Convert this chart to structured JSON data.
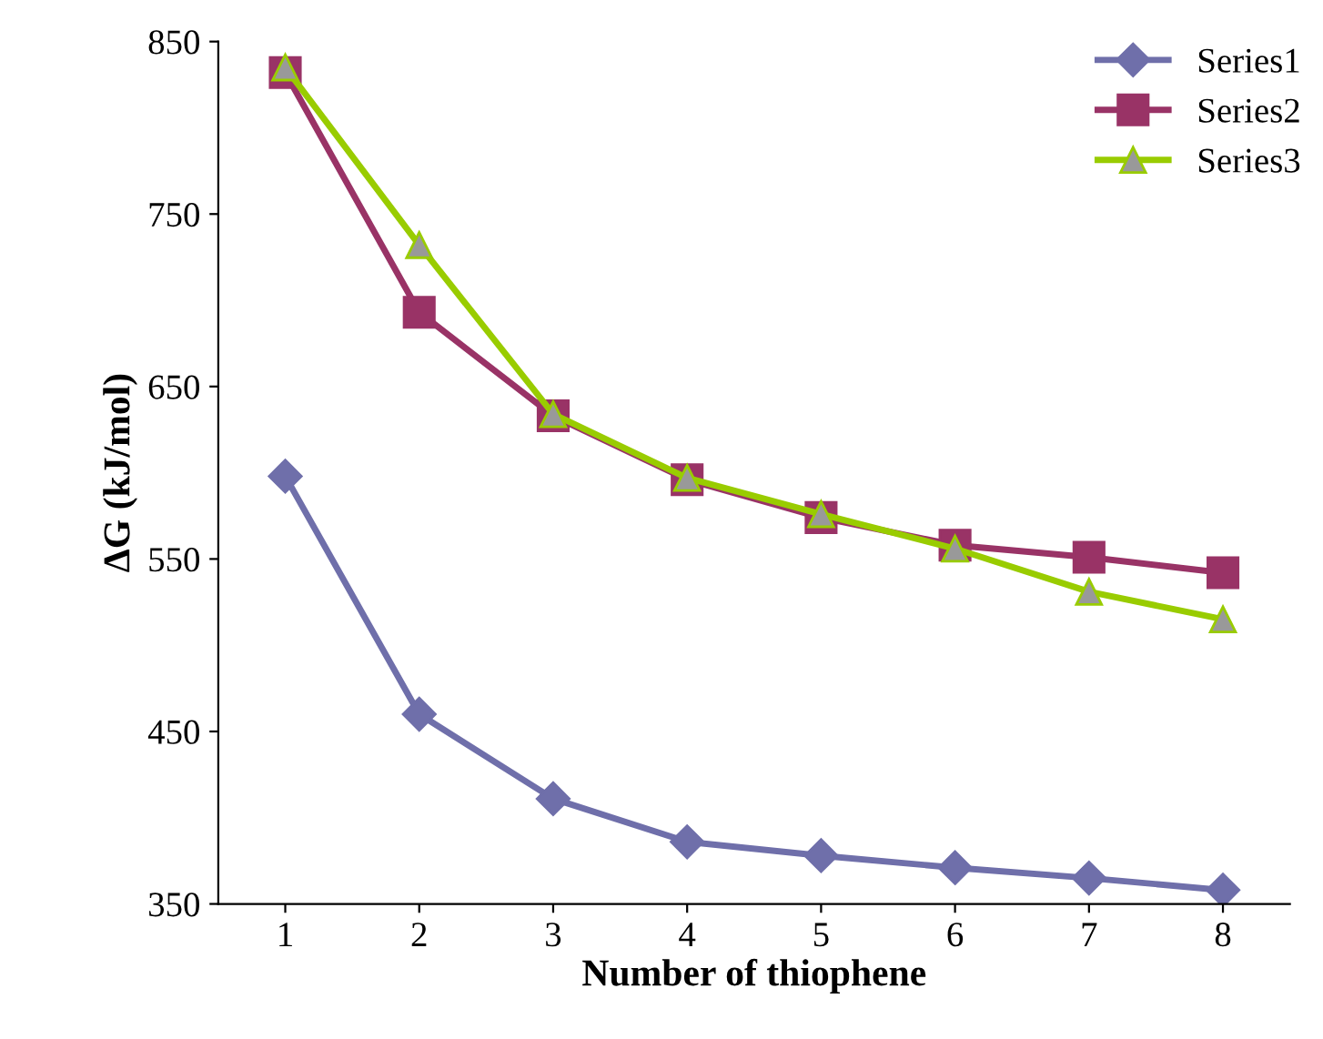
{
  "chart_data": {
    "type": "line",
    "xlabel": "Number of thiophene",
    "ylabel": "ΔG (kJ/mol)",
    "categories": [
      "1",
      "2",
      "3",
      "4",
      "5",
      "6",
      "7",
      "8"
    ],
    "ylim": [
      350,
      850
    ],
    "yticks": [
      350,
      450,
      550,
      650,
      750,
      850
    ],
    "grid": false,
    "legend": "top right",
    "series": [
      {
        "name": "Series1",
        "color": "#6f6faa",
        "marker": "diamond",
        "values": [
          598,
          460,
          411,
          386,
          378,
          371,
          365,
          358
        ]
      },
      {
        "name": "Series2",
        "color": "#993366",
        "marker": "square",
        "values": [
          832,
          693,
          633,
          596,
          574,
          558,
          551,
          542
        ]
      },
      {
        "name": "Series3",
        "color": "#99cc00",
        "marker": "triangle",
        "values": [
          835,
          732,
          634,
          597,
          576,
          556,
          531,
          515
        ]
      }
    ]
  }
}
